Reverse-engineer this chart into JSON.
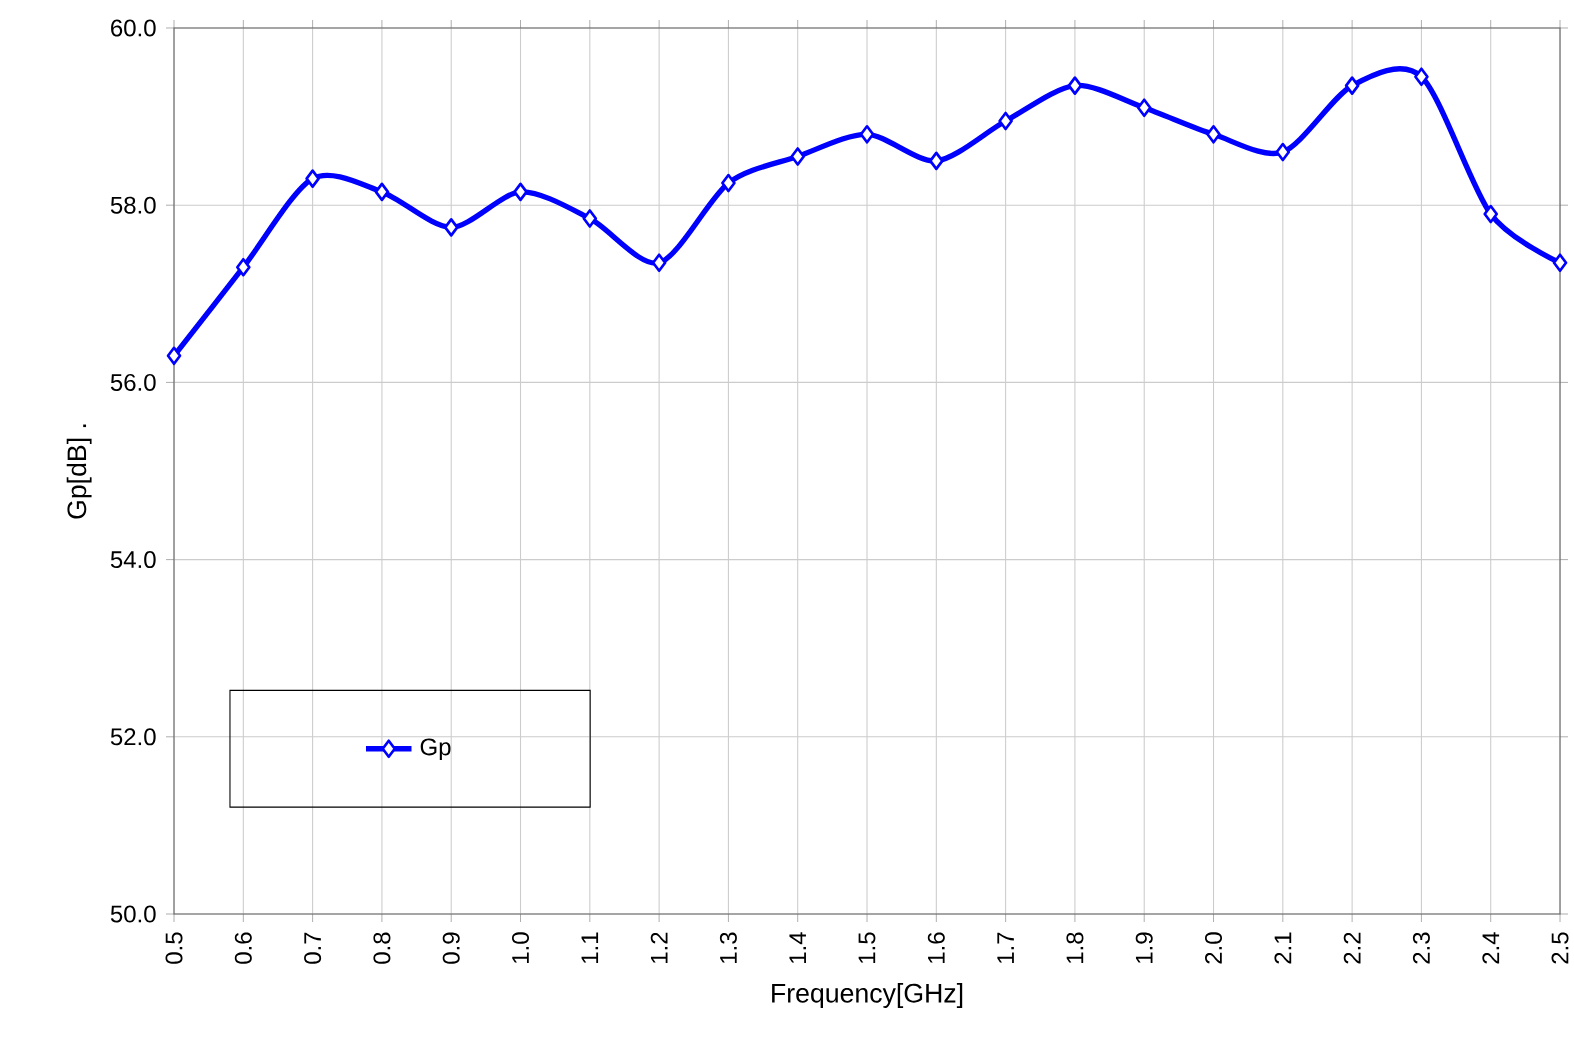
{
  "chart_data": {
    "type": "line",
    "xlabel": "Frequency[GHz]",
    "ylabel": "Gp[dB] .",
    "x": [
      0.5,
      0.6,
      0.7,
      0.8,
      0.9,
      1.0,
      1.1,
      1.2,
      1.3,
      1.4,
      1.5,
      1.6,
      1.7,
      1.8,
      1.9,
      2.0,
      2.1,
      2.2,
      2.3,
      2.4,
      2.5
    ],
    "series": [
      {
        "name": "Gp",
        "color": "#0000ff",
        "values": [
          56.3,
          57.3,
          58.3,
          58.15,
          57.75,
          58.15,
          57.85,
          57.35,
          58.25,
          58.55,
          58.8,
          58.5,
          58.95,
          59.35,
          59.1,
          58.8,
          58.6,
          59.35,
          59.45,
          57.9,
          57.35
        ]
      }
    ],
    "xlim": [
      0.5,
      2.5
    ],
    "ylim": [
      50,
      60
    ],
    "xticks": [
      {
        "value": 0.5,
        "label": "0.5"
      },
      {
        "value": 0.6,
        "label": "0.6"
      },
      {
        "value": 0.7,
        "label": "0.7"
      },
      {
        "value": 0.8,
        "label": "0.8"
      },
      {
        "value": 0.9,
        "label": "0.9"
      },
      {
        "value": 1.0,
        "label": "1.0"
      },
      {
        "value": 1.1,
        "label": "1.1"
      },
      {
        "value": 1.2,
        "label": "1.2"
      },
      {
        "value": 1.3,
        "label": "1.3"
      },
      {
        "value": 1.4,
        "label": "1.4"
      },
      {
        "value": 1.5,
        "label": "1.5"
      },
      {
        "value": 1.6,
        "label": "1.6"
      },
      {
        "value": 1.7,
        "label": "1.7"
      },
      {
        "value": 1.8,
        "label": "1.8"
      },
      {
        "value": 1.9,
        "label": "1.9"
      },
      {
        "value": 2.0,
        "label": "2.0"
      },
      {
        "value": 2.1,
        "label": "2.1"
      },
      {
        "value": 2.2,
        "label": "2.2"
      },
      {
        "value": 2.3,
        "label": "2.3"
      },
      {
        "value": 2.4,
        "label": "2.4"
      },
      {
        "value": 2.5,
        "label": "2.5"
      }
    ],
    "yticks": [
      {
        "value": 50,
        "label": "50.0"
      },
      {
        "value": 52,
        "label": "52.0"
      },
      {
        "value": 54,
        "label": "54.0"
      },
      {
        "value": 56,
        "label": "56.0"
      },
      {
        "value": 58,
        "label": "58.0"
      },
      {
        "value": 60,
        "label": "60.0"
      }
    ],
    "grid": true,
    "legend": "bottom left",
    "marker": "diamond",
    "line_style": "solid"
  }
}
